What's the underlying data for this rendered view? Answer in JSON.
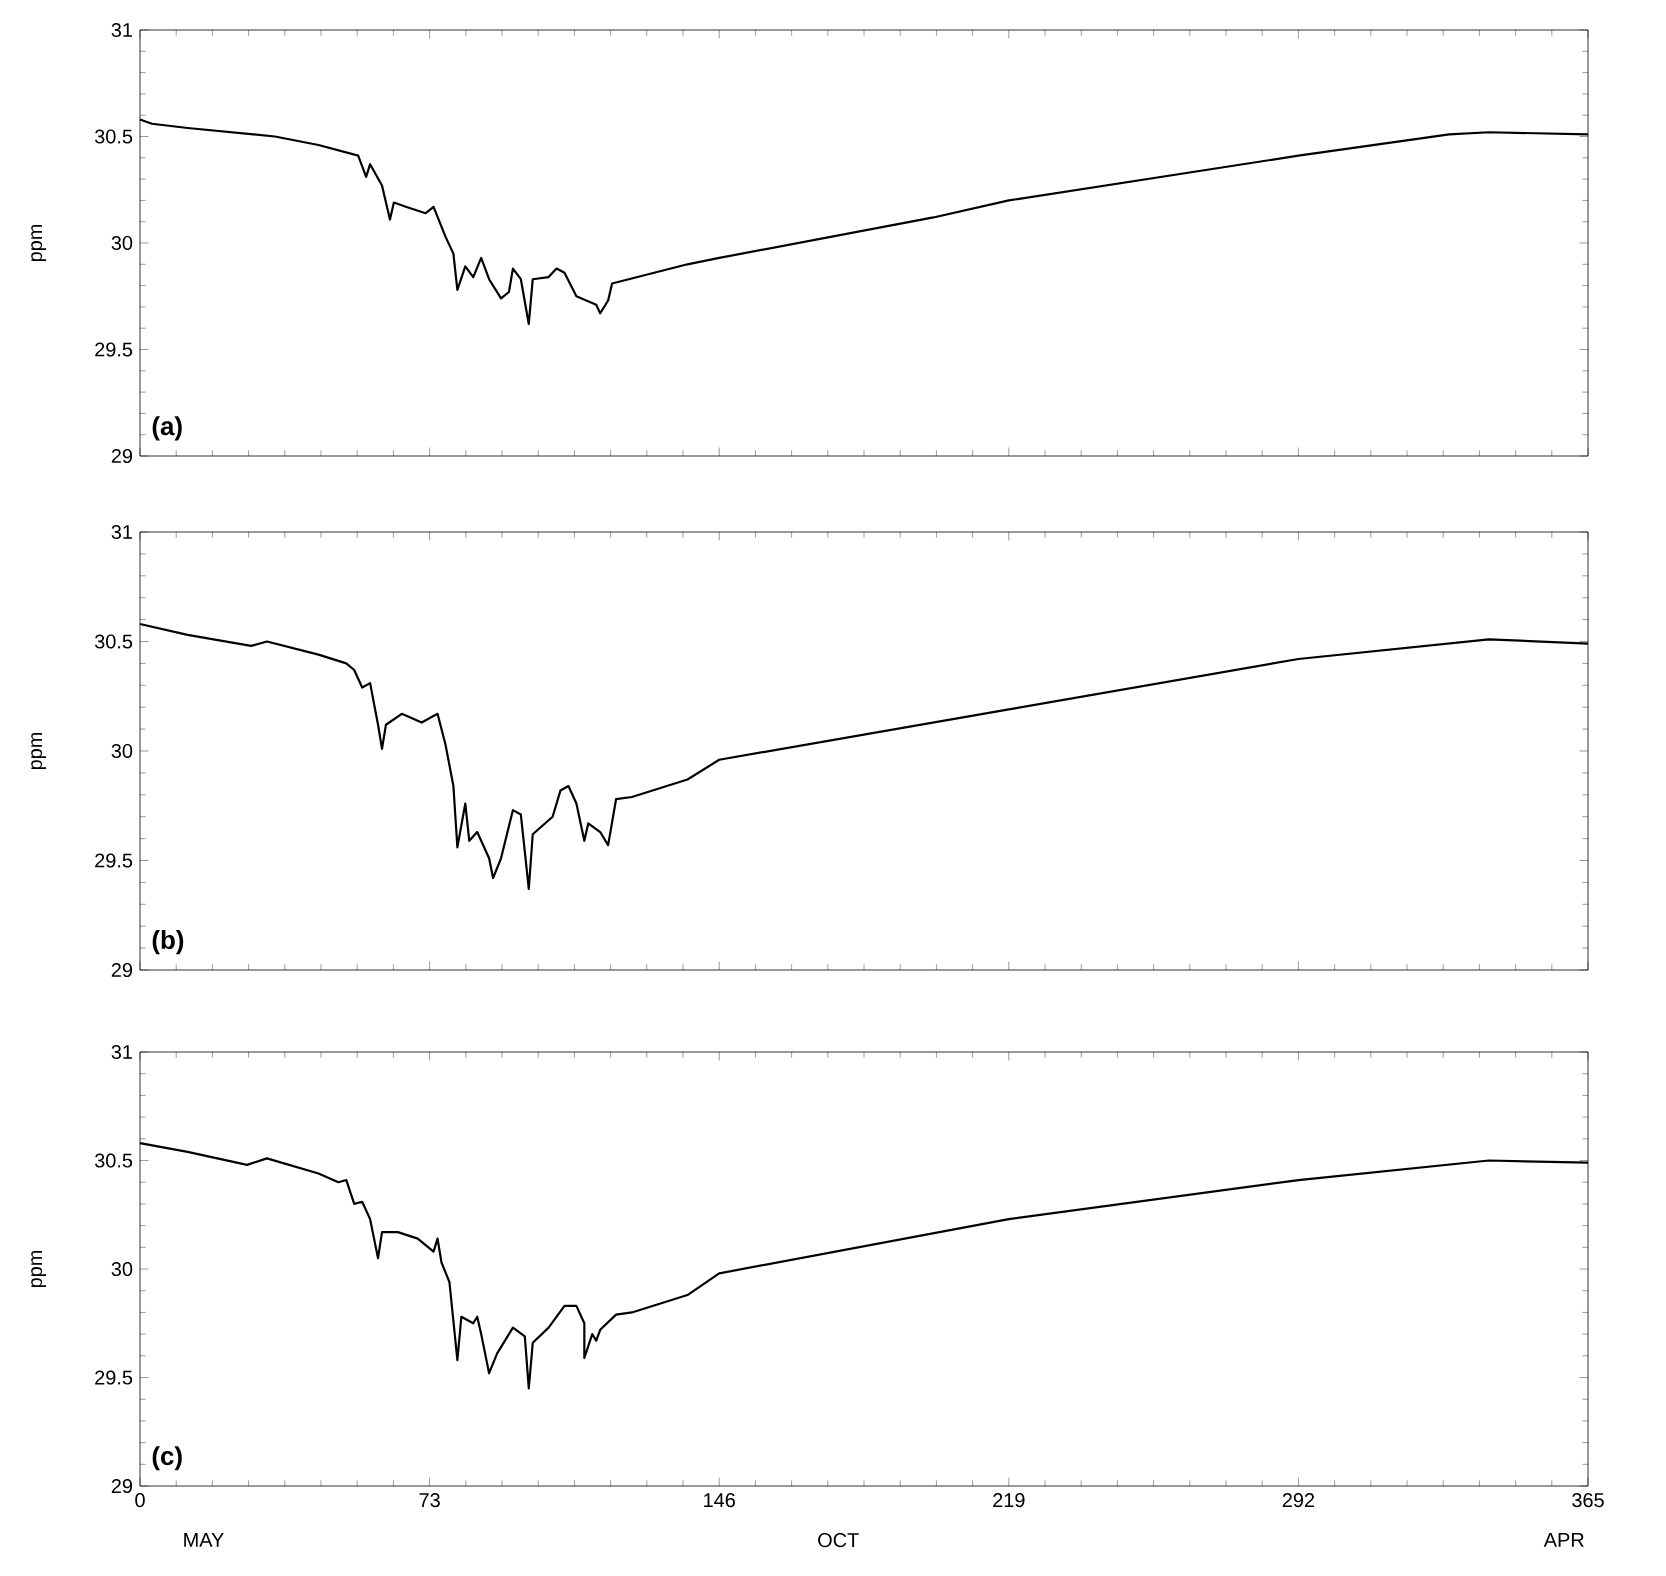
{
  "chart_data": [
    {
      "type": "line",
      "ylabel": "ppm",
      "xlim": [
        0,
        365
      ],
      "ylim": [
        29,
        31
      ],
      "xticks": [
        0,
        73,
        146,
        219,
        292,
        365
      ],
      "yticks": [
        29,
        29.5,
        30,
        30.5,
        31
      ],
      "tick_labels": "y",
      "annotations": [
        "(a)"
      ],
      "series": [
        {
          "color": "#000000",
          "x": [
            0,
            3,
            12,
            34,
            45,
            55,
            57,
            58,
            61,
            63,
            64,
            67,
            72,
            74,
            77,
            79,
            80,
            82,
            84,
            86,
            88,
            91,
            93,
            94,
            96,
            98,
            99,
            103,
            105,
            107,
            110,
            115,
            116,
            118,
            119,
            138,
            146,
            200,
            219,
            292,
            330,
            340,
            365
          ],
          "values": [
            30.58,
            30.56,
            30.54,
            30.5,
            30.46,
            30.41,
            30.31,
            30.37,
            30.27,
            30.11,
            30.19,
            30.17,
            30.14,
            30.17,
            30.03,
            29.95,
            29.78,
            29.89,
            29.84,
            29.93,
            29.83,
            29.74,
            29.77,
            29.88,
            29.83,
            29.62,
            29.83,
            29.84,
            29.88,
            29.86,
            29.75,
            29.71,
            29.67,
            29.73,
            29.81,
            29.9,
            29.93,
            30.12,
            30.2,
            30.41,
            30.51,
            30.52,
            30.51
          ]
        }
      ]
    },
    {
      "type": "line",
      "ylabel": "ppm",
      "xlim": [
        0,
        365
      ],
      "ylim": [
        29,
        31
      ],
      "xticks": [
        0,
        73,
        146,
        219,
        292,
        365
      ],
      "yticks": [
        29,
        29.5,
        30,
        30.5,
        31
      ],
      "tick_labels": "y",
      "annotations": [
        "(b)"
      ],
      "series": [
        {
          "color": "#000000",
          "x": [
            0,
            12,
            28,
            32,
            45,
            52,
            54,
            56,
            58,
            60,
            61,
            62,
            66,
            71,
            75,
            77,
            79,
            80,
            82,
            83,
            85,
            88,
            89,
            91,
            94,
            96,
            98,
            99,
            104,
            106,
            108,
            110,
            112,
            113,
            116,
            118,
            120,
            124,
            138,
            146,
            219,
            292,
            340,
            365
          ],
          "values": [
            30.58,
            30.53,
            30.48,
            30.5,
            30.44,
            30.4,
            30.37,
            30.29,
            30.31,
            30.12,
            30.01,
            30.12,
            30.17,
            30.13,
            30.17,
            30.03,
            29.84,
            29.56,
            29.76,
            29.59,
            29.63,
            29.51,
            29.42,
            29.51,
            29.73,
            29.71,
            29.37,
            29.62,
            29.7,
            29.82,
            29.84,
            29.76,
            29.59,
            29.67,
            29.63,
            29.57,
            29.78,
            29.79,
            29.87,
            29.96,
            30.19,
            30.42,
            30.51,
            30.49
          ]
        }
      ]
    },
    {
      "type": "line",
      "ylabel": "ppm",
      "xlim": [
        0,
        365
      ],
      "ylim": [
        29,
        31
      ],
      "xticks": [
        0,
        73,
        146,
        219,
        292,
        365
      ],
      "yticks": [
        29,
        29.5,
        30,
        30.5,
        31
      ],
      "annotations": [
        "(c)",
        "MAY",
        "OCT",
        "APR"
      ],
      "series": [
        {
          "color": "#000000",
          "x": [
            0,
            12,
            27,
            32,
            45,
            50,
            52,
            54,
            56,
            58,
            60,
            61,
            65,
            70,
            74,
            75,
            76,
            78,
            80,
            81,
            84,
            85,
            86,
            88,
            90,
            94,
            97,
            98,
            99,
            103,
            107,
            110,
            112,
            112,
            114,
            115,
            116,
            120,
            124,
            138,
            146,
            219,
            292,
            340,
            365
          ],
          "values": [
            30.58,
            30.54,
            30.48,
            30.51,
            30.44,
            30.4,
            30.41,
            30.3,
            30.31,
            30.23,
            30.05,
            30.17,
            30.17,
            30.14,
            30.08,
            30.14,
            30.03,
            29.94,
            29.58,
            29.78,
            29.75,
            29.78,
            29.7,
            29.52,
            29.61,
            29.73,
            29.69,
            29.45,
            29.66,
            29.73,
            29.83,
            29.83,
            29.75,
            29.59,
            29.7,
            29.67,
            29.72,
            29.79,
            29.8,
            29.88,
            29.98,
            30.23,
            30.41,
            30.5,
            30.49
          ]
        }
      ]
    }
  ]
}
